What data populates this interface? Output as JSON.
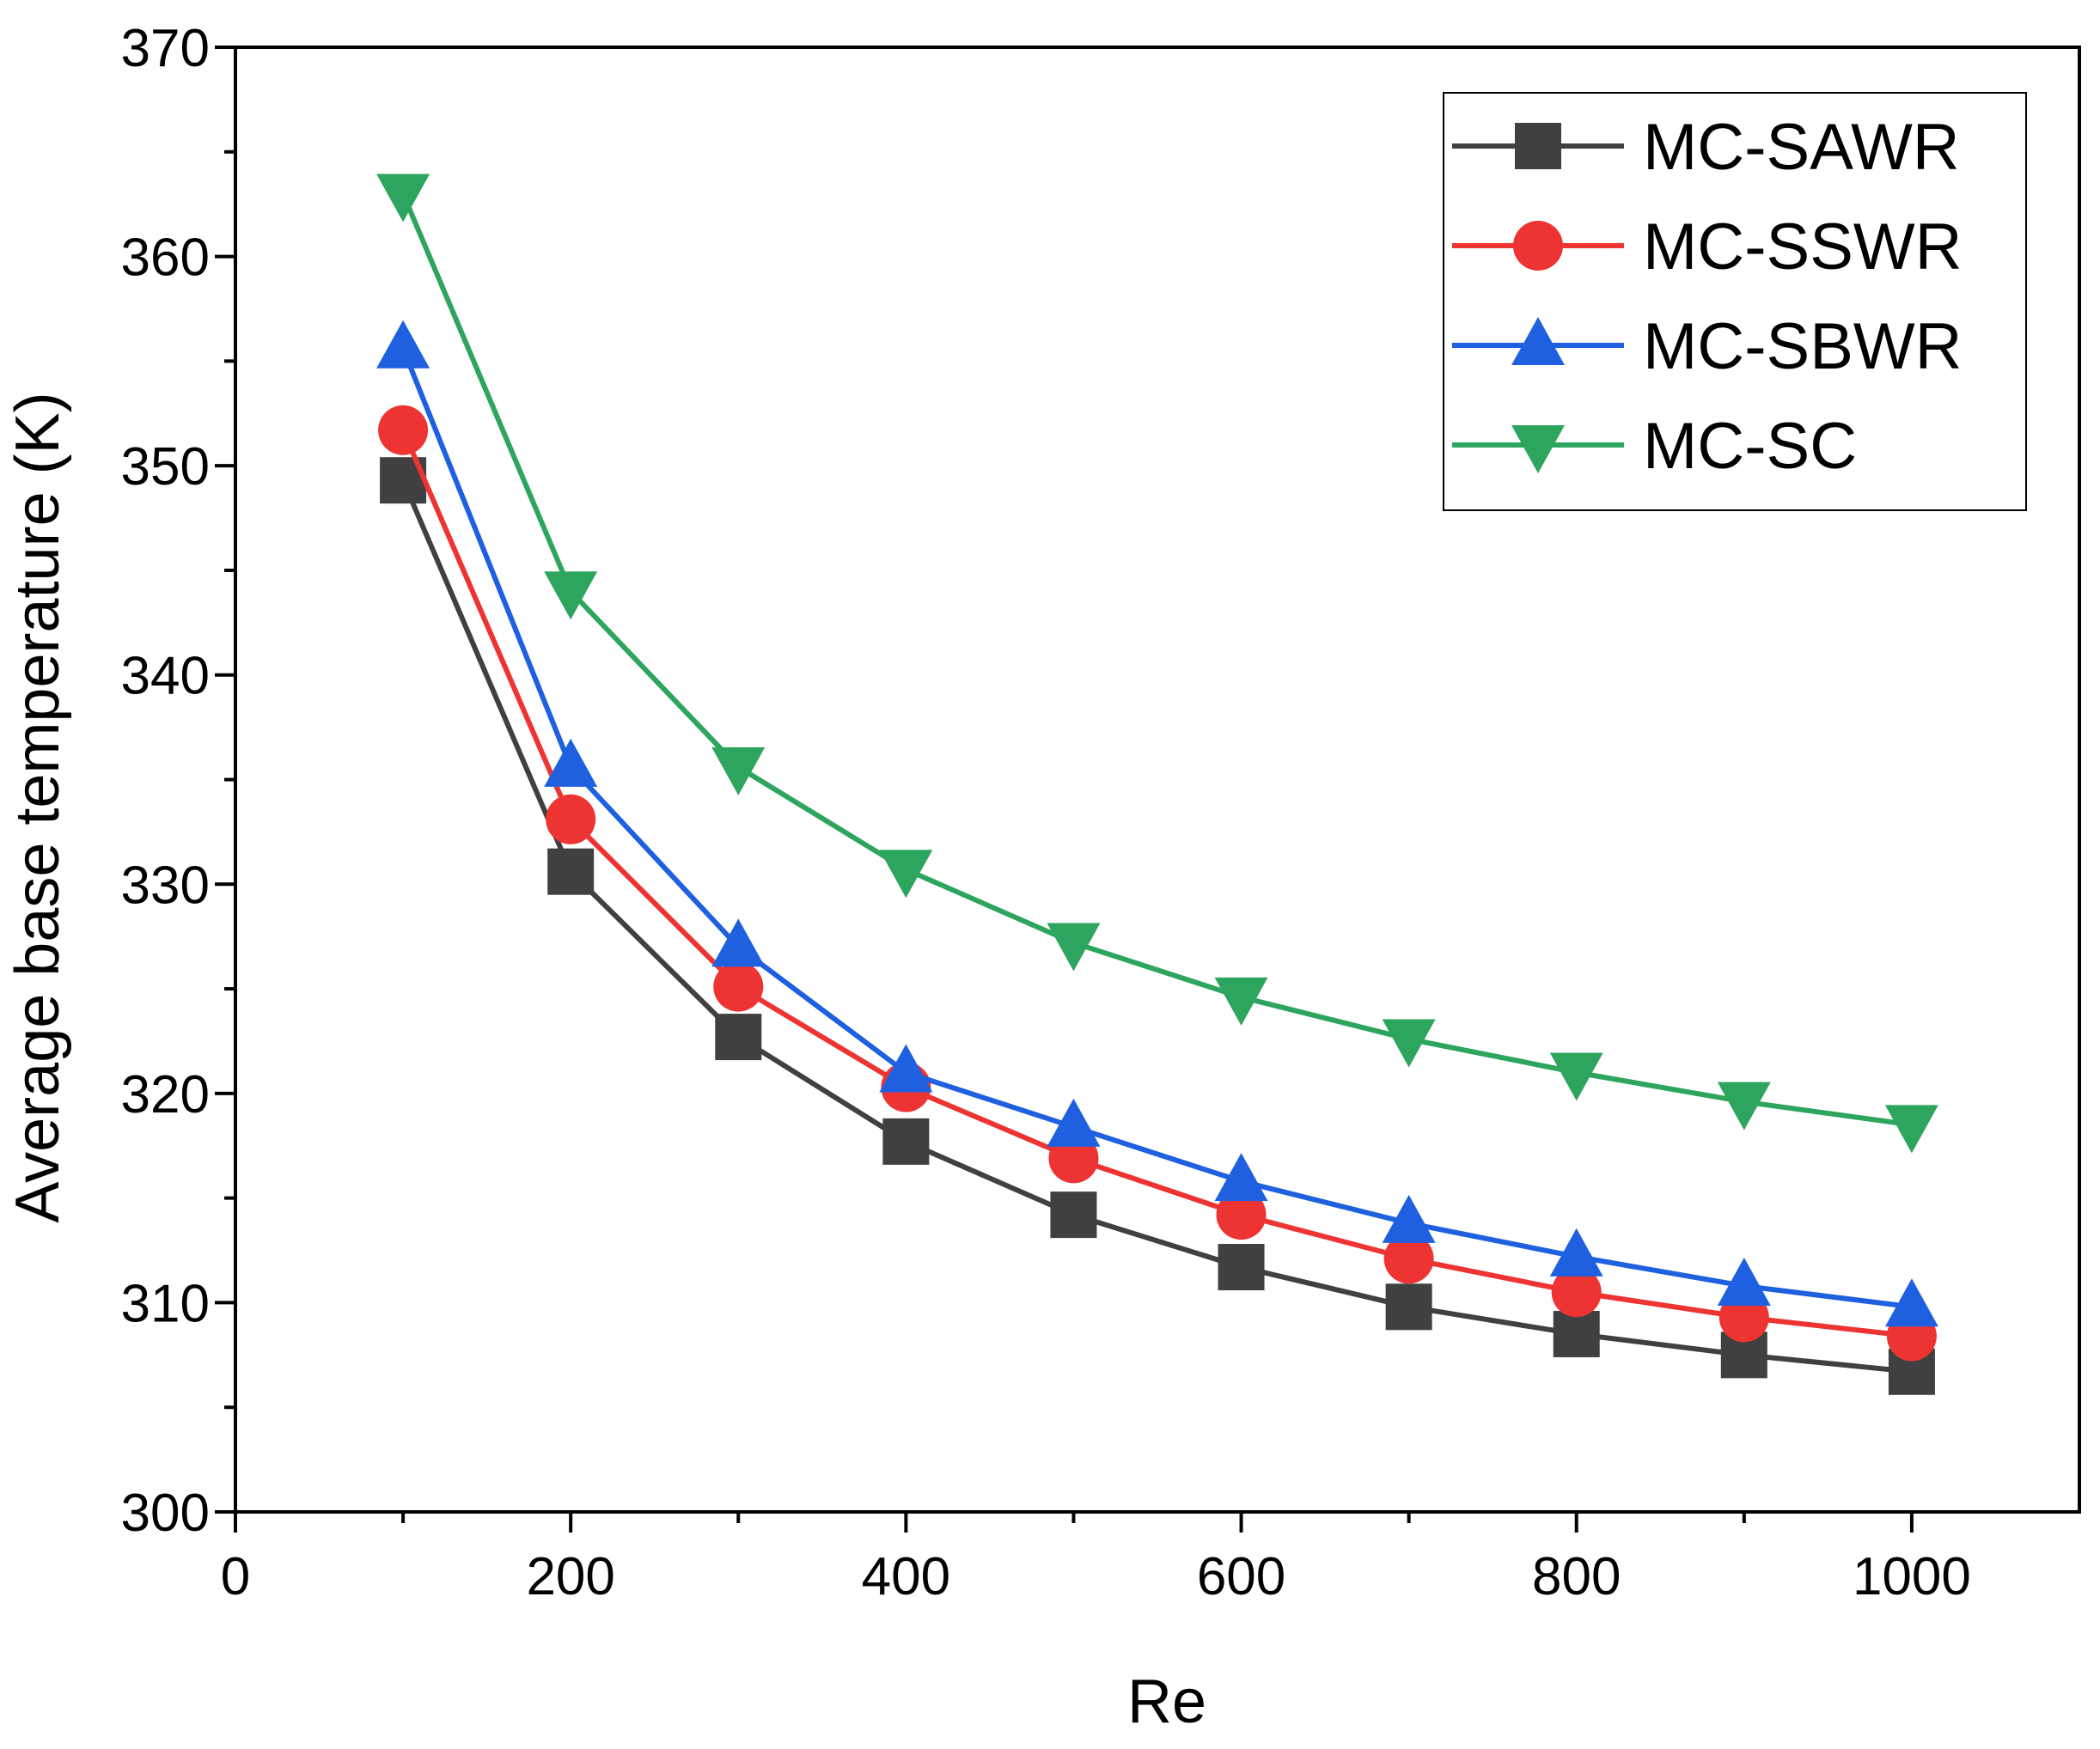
{
  "chart_data": {
    "type": "line",
    "title": "",
    "xlabel": "Re",
    "ylabel": "Average base temperature (K)",
    "xlim": [
      0,
      1100
    ],
    "ylim": [
      300,
      370
    ],
    "xticks": [
      0,
      200,
      400,
      600,
      800,
      1000
    ],
    "yticks": [
      300,
      310,
      320,
      330,
      340,
      350,
      360,
      370
    ],
    "grid": false,
    "legend_position": "top-right",
    "x": [
      100,
      200,
      300,
      400,
      500,
      600,
      700,
      800,
      900,
      1000
    ],
    "series": [
      {
        "name": "MC-SAWR",
        "color": "#404040",
        "marker": "square",
        "values": [
          349.3,
          330.6,
          322.7,
          317.7,
          314.2,
          311.7,
          309.8,
          308.5,
          307.5,
          306.7
        ]
      },
      {
        "name": "MC-SSWR",
        "color": "#ee3333",
        "marker": "circle",
        "values": [
          351.7,
          333.1,
          325.1,
          320.3,
          316.9,
          314.2,
          312.1,
          310.5,
          309.3,
          308.4
        ]
      },
      {
        "name": "MC-SBWR",
        "color": "#1e60e0",
        "marker": "triangle-up",
        "values": [
          355.6,
          335.6,
          327.0,
          321.0,
          318.4,
          315.8,
          313.8,
          312.2,
          310.8,
          309.8
        ]
      },
      {
        "name": "MC-SC",
        "color": "#2ea55e",
        "marker": "triangle-down",
        "values": [
          363.0,
          344.0,
          335.6,
          330.7,
          327.2,
          324.6,
          322.6,
          321.0,
          319.6,
          318.5
        ]
      }
    ]
  }
}
